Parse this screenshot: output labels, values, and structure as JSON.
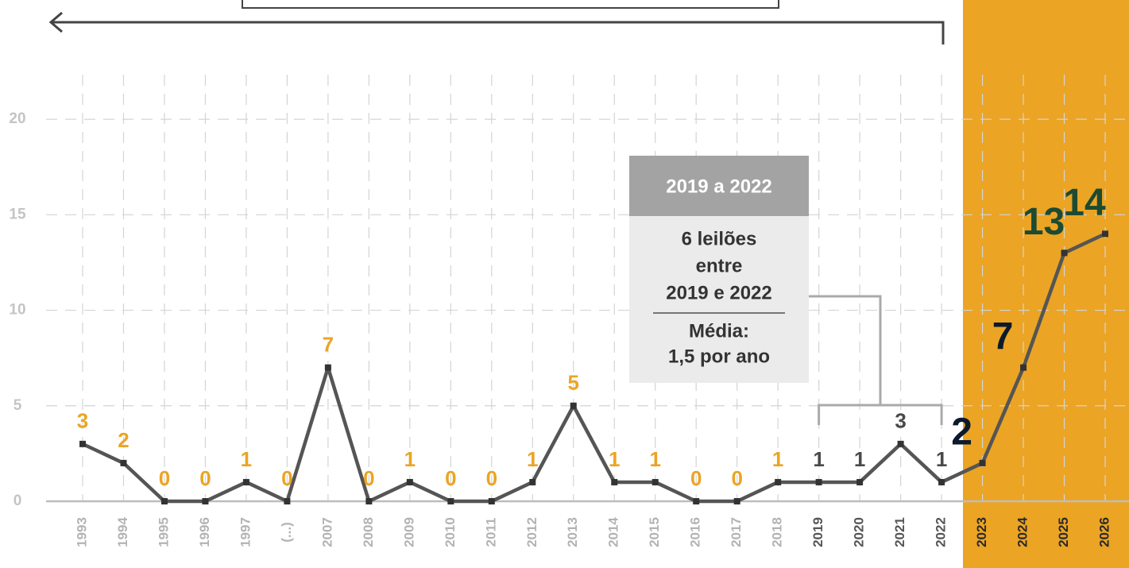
{
  "chart_data": {
    "type": "line",
    "categories": [
      "1993",
      "1994",
      "1995",
      "1996",
      "1997",
      "(...)",
      "2007",
      "2008",
      "2009",
      "2010",
      "2011",
      "2012",
      "2013",
      "2014",
      "2015",
      "2016",
      "2017",
      "2018",
      "2019",
      "2020",
      "2021",
      "2022",
      "2023",
      "2024",
      "2025",
      "2026"
    ],
    "values": [
      3,
      2,
      0,
      0,
      1,
      0,
      7,
      0,
      1,
      0,
      0,
      1,
      5,
      1,
      1,
      0,
      0,
      1,
      1,
      1,
      3,
      1,
      2,
      7,
      13,
      14
    ],
    "color": "#555555",
    "label_colors": [
      "#eba424",
      "#eba424",
      "#eba424",
      "#eba424",
      "#eba424",
      "#eba424",
      "#eba424",
      "#eba424",
      "#eba424",
      "#eba424",
      "#eba424",
      "#eba424",
      "#eba424",
      "#eba424",
      "#eba424",
      "#eba424",
      "#eba424",
      "#eba424",
      "#4a4a4a",
      "#4a4a4a",
      "#4a4a4a",
      "#4a4a4a",
      "#0d1a2b",
      "#0d1a2b",
      "#1c4a32",
      "#1c4a32"
    ],
    "ylim": [
      0,
      22
    ],
    "yticks": [
      0,
      5,
      10,
      15,
      20
    ],
    "grid": true,
    "annotation": {
      "title": "2019 a 2022",
      "lines": [
        "6 leilões",
        "entre",
        "2019 e 2022"
      ],
      "note": [
        "Média:",
        "1,5 por ano"
      ]
    }
  }
}
